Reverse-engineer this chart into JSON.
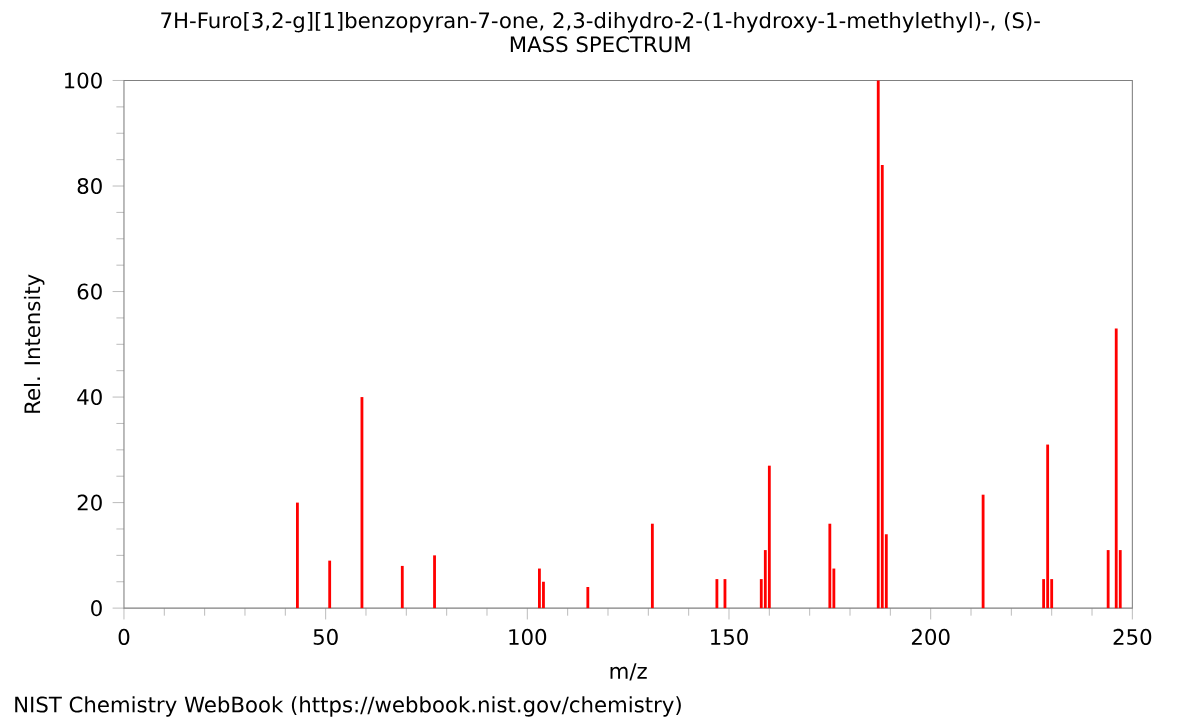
{
  "chart_data": {
    "type": "bar",
    "title": "7H-Furo[3,2-g][1]benzopyran-7-one, 2,3-dihydro-2-(1-hydroxy-1-methylethyl)-, (S)-",
    "subtitle": "MASS SPECTRUM",
    "xlabel": "m/z",
    "ylabel": "Rel. Intensity",
    "x": [
      43,
      51,
      59,
      69,
      77,
      103,
      104,
      115,
      131,
      147,
      149,
      158,
      159,
      160,
      175,
      176,
      187,
      188,
      189,
      213,
      228,
      229,
      230,
      244,
      246,
      247
    ],
    "values": [
      20,
      9,
      40,
      8,
      10,
      7.5,
      5,
      4,
      16,
      5.5,
      5.5,
      5.5,
      11,
      27,
      16,
      7.5,
      100,
      84,
      14,
      21.5,
      5.5,
      31,
      5.5,
      11,
      53,
      11
    ],
    "color": "#ff0000",
    "xlim": [
      0,
      250
    ],
    "ylim": [
      0,
      100
    ],
    "xticks": [
      0,
      50,
      100,
      150,
      200,
      250
    ],
    "yticks": [
      0,
      20,
      40,
      60,
      80,
      100
    ],
    "annotations": [
      "NIST Chemistry WebBook (https://webbook.nist.gov/chemistry)"
    ]
  }
}
